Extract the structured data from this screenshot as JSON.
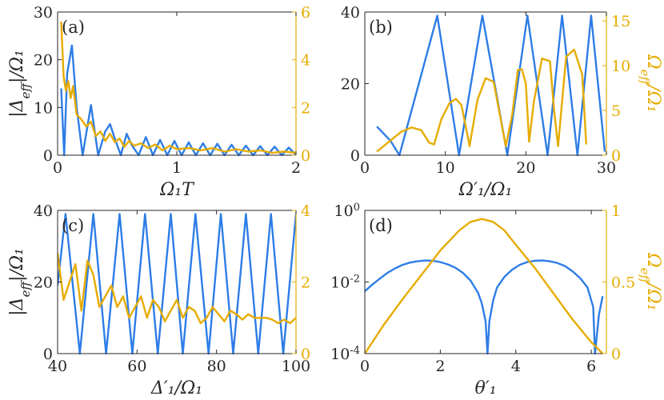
{
  "colors": {
    "blue": "#2e7de6",
    "yellow": "#e6ac00",
    "axis": "#262626"
  },
  "chart_data": [
    {
      "panel": "(a)",
      "type": "line",
      "xlabel": "Ω₁T",
      "ylabel_left": "|Δ_eff|/Ω₁",
      "ylabel_right": "",
      "xlim": [
        0,
        2
      ],
      "ylim_left": [
        0,
        30
      ],
      "ylim_right": [
        0,
        6
      ],
      "xticks": [
        "0",
        "1",
        "2"
      ],
      "yticks_left": [
        "0",
        "10",
        "20",
        "30"
      ],
      "yticks_right": [
        "0",
        "2",
        "4",
        "6"
      ],
      "series": [
        {
          "axis": "left",
          "color": "blue",
          "x": [
            0.03,
            0.055,
            0.08,
            0.12,
            0.16,
            0.21,
            0.28,
            0.34,
            0.4,
            0.44,
            0.48,
            0.53,
            0.58,
            0.62,
            0.68,
            0.74,
            0.8,
            0.86,
            0.92,
            0.98,
            1.04,
            1.1,
            1.16,
            1.22,
            1.28,
            1.34,
            1.4,
            1.46,
            1.52,
            1.58,
            1.64,
            1.7,
            1.76,
            1.82,
            1.88,
            1.94,
            2.0
          ],
          "y": [
            14,
            0,
            17,
            23,
            10,
            0,
            10.5,
            0,
            5,
            6.5,
            3.5,
            0,
            4.5,
            2.2,
            0,
            3.8,
            0,
            3.2,
            0,
            3.0,
            0,
            2.7,
            0,
            2.5,
            0,
            2.4,
            0,
            2.2,
            0,
            2.0,
            0,
            1.9,
            0,
            1.8,
            0,
            1.6,
            0
          ]
        },
        {
          "axis": "right",
          "color": "yellow",
          "x": [
            0.03,
            0.05,
            0.07,
            0.09,
            0.11,
            0.13,
            0.16,
            0.2,
            0.24,
            0.28,
            0.32,
            0.36,
            0.4,
            0.44,
            0.48,
            0.52,
            0.56,
            0.6,
            0.64,
            0.7,
            0.76,
            0.82,
            0.88,
            0.94,
            1.0,
            1.1,
            1.2,
            1.3,
            1.4,
            1.5,
            1.6,
            1.7,
            1.8,
            1.9,
            2.0
          ],
          "y": [
            5.6,
            3.3,
            2.7,
            3.1,
            2.4,
            2.9,
            1.7,
            1.5,
            1.2,
            1.4,
            0.8,
            1.0,
            0.6,
            0.9,
            0.55,
            0.7,
            0.35,
            0.6,
            0.4,
            0.5,
            0.3,
            0.45,
            0.2,
            0.4,
            0.25,
            0.3,
            0.2,
            0.3,
            0.15,
            0.25,
            0.15,
            0.2,
            0.1,
            0.15,
            0.1
          ]
        }
      ]
    },
    {
      "panel": "(b)",
      "type": "line",
      "xlabel": "Ω′₁/Ω₁",
      "ylabel_left": "",
      "ylabel_right": "Ω_eff/Ω₁",
      "xlim": [
        0,
        30
      ],
      "ylim_left": [
        0,
        40
      ],
      "ylim_right": [
        0,
        16
      ],
      "xticks": [
        "0",
        "10",
        "20",
        "30"
      ],
      "yticks_left": [
        "0",
        "20",
        "40"
      ],
      "yticks_right": [
        "0",
        "5",
        "10",
        "15"
      ],
      "series": [
        {
          "axis": "left",
          "color": "blue",
          "x": [
            1.5,
            3.2,
            4.3,
            9,
            11.7,
            14.6,
            17.7,
            20.2,
            22.7,
            24.5,
            26.4,
            28.1,
            29.8
          ],
          "y": [
            8,
            4,
            0,
            39,
            0,
            39,
            0,
            39,
            0,
            39,
            0,
            39,
            1
          ]
        },
        {
          "axis": "right",
          "color": "yellow",
          "x": [
            1.5,
            3,
            4.5,
            5.8,
            7,
            8,
            8.6,
            9.5,
            10.5,
            11.3,
            12,
            12.8,
            13,
            14,
            15,
            16,
            16.8,
            17.5,
            18.3,
            19,
            19.5,
            20,
            20.4,
            21,
            22,
            23,
            23.5,
            24,
            24.6,
            25,
            26,
            27,
            27.5
          ],
          "y": [
            0.4,
            1.5,
            2.6,
            3.1,
            2.8,
            1.4,
            1.2,
            4.0,
            5.8,
            6.3,
            5.6,
            2.0,
            1.0,
            6.2,
            8.6,
            8.2,
            4.4,
            1.0,
            4.5,
            9.5,
            9.6,
            8.0,
            1.5,
            6.0,
            10.8,
            10.5,
            5.0,
            1.0,
            7.0,
            11.0,
            11.8,
            9.0,
            1.2
          ]
        }
      ]
    },
    {
      "panel": "(c)",
      "type": "line",
      "xlabel": "Δ′₁/Ω₁",
      "ylabel_left": "|Δ_eff|/Ω₁",
      "ylabel_right": "",
      "xlim": [
        40,
        100
      ],
      "ylim_left": [
        0,
        40
      ],
      "ylim_right": [
        0,
        4
      ],
      "xticks": [
        "40",
        "60",
        "80",
        "100"
      ],
      "yticks_left": [
        "0",
        "20",
        "40"
      ],
      "yticks_right": [
        "0",
        "2",
        "4"
      ],
      "series": [
        {
          "axis": "left",
          "color": "blue",
          "x": [
            40,
            42,
            45.6,
            49,
            52.2,
            55.6,
            58.8,
            62,
            65.2,
            68.5,
            71.5,
            74.7,
            78,
            81.1,
            84.2,
            87.4,
            90.5,
            93.7,
            96.8,
            100
          ],
          "y": [
            19,
            39,
            0,
            39,
            0,
            39,
            0,
            39,
            0,
            39,
            0,
            39,
            0,
            39,
            0,
            39,
            0,
            39,
            0,
            39
          ]
        },
        {
          "axis": "right",
          "color": "yellow",
          "x": [
            40,
            41.5,
            43,
            44.5,
            46,
            47.5,
            49,
            50.5,
            52,
            53.5,
            55,
            56.5,
            58,
            59.5,
            61,
            62.5,
            64,
            65.5,
            67,
            68.5,
            70,
            71.5,
            73,
            74.5,
            76,
            77.5,
            79,
            80.5,
            82,
            83.5,
            85,
            86.5,
            88,
            89.5,
            91,
            92.5,
            94,
            95.5,
            97,
            98.5,
            100
          ],
          "y": [
            2.8,
            1.5,
            2.0,
            2.5,
            1.2,
            2.6,
            2.2,
            1.3,
            1.6,
            1.9,
            1.3,
            1.6,
            1.0,
            1.3,
            1.6,
            1.0,
            1.5,
            1.3,
            0.9,
            1.2,
            1.5,
            1.0,
            1.3,
            1.2,
            0.85,
            1.0,
            1.3,
            1.1,
            0.9,
            1.2,
            1.1,
            0.95,
            1.1,
            1.0,
            1.0,
            1.0,
            0.95,
            0.85,
            0.95,
            0.85,
            1.0
          ]
        }
      ]
    },
    {
      "panel": "(d)",
      "type": "line",
      "xlabel": "θ′₁",
      "ylabel_left": "",
      "ylabel_right": "Ω_eff/Ω₁",
      "xlim": [
        0,
        6.4
      ],
      "ylim_left": [
        0.0001,
        1
      ],
      "left_scale": "log",
      "ylim_right": [
        0,
        1
      ],
      "xticks": [
        "0",
        "2",
        "4",
        "6"
      ],
      "yticks_left": [
        "10^-4",
        "10^-2",
        "10^0"
      ],
      "yticks_right": [
        "0",
        "0.5",
        "1"
      ],
      "series": [
        {
          "axis": "left",
          "color": "blue",
          "x": [
            0,
            0.2,
            0.4,
            0.6,
            0.8,
            1.0,
            1.2,
            1.4,
            1.6,
            1.8,
            2.0,
            2.2,
            2.4,
            2.6,
            2.8,
            3.0,
            3.1,
            3.2,
            3.25,
            3.3,
            3.4,
            3.5,
            3.7,
            3.9,
            4.1,
            4.3,
            4.5,
            4.7,
            4.9,
            5.1,
            5.3,
            5.5,
            5.7,
            5.9,
            6.05,
            6.1,
            6.2,
            6.3
          ],
          "y": [
            0.0055,
            0.0085,
            0.0125,
            0.018,
            0.024,
            0.03,
            0.035,
            0.038,
            0.04,
            0.039,
            0.036,
            0.031,
            0.025,
            0.018,
            0.011,
            0.005,
            0.0025,
            0.0008,
            0.0001,
            0.0008,
            0.003,
            0.007,
            0.014,
            0.022,
            0.03,
            0.036,
            0.039,
            0.04,
            0.038,
            0.034,
            0.028,
            0.02,
            0.013,
            0.007,
            0.002,
            0.0001,
            0.0012,
            0.004
          ]
        },
        {
          "axis": "right",
          "color": "yellow",
          "x": [
            0,
            0.5,
            1.0,
            1.5,
            2.0,
            2.5,
            2.8,
            3.1,
            3.4,
            3.7,
            4.0,
            4.5,
            5.0,
            5.5,
            6.0,
            6.3
          ],
          "y": [
            0,
            0.2,
            0.38,
            0.55,
            0.72,
            0.86,
            0.92,
            0.94,
            0.92,
            0.86,
            0.76,
            0.6,
            0.42,
            0.24,
            0.08,
            0.0
          ]
        }
      ]
    }
  ]
}
